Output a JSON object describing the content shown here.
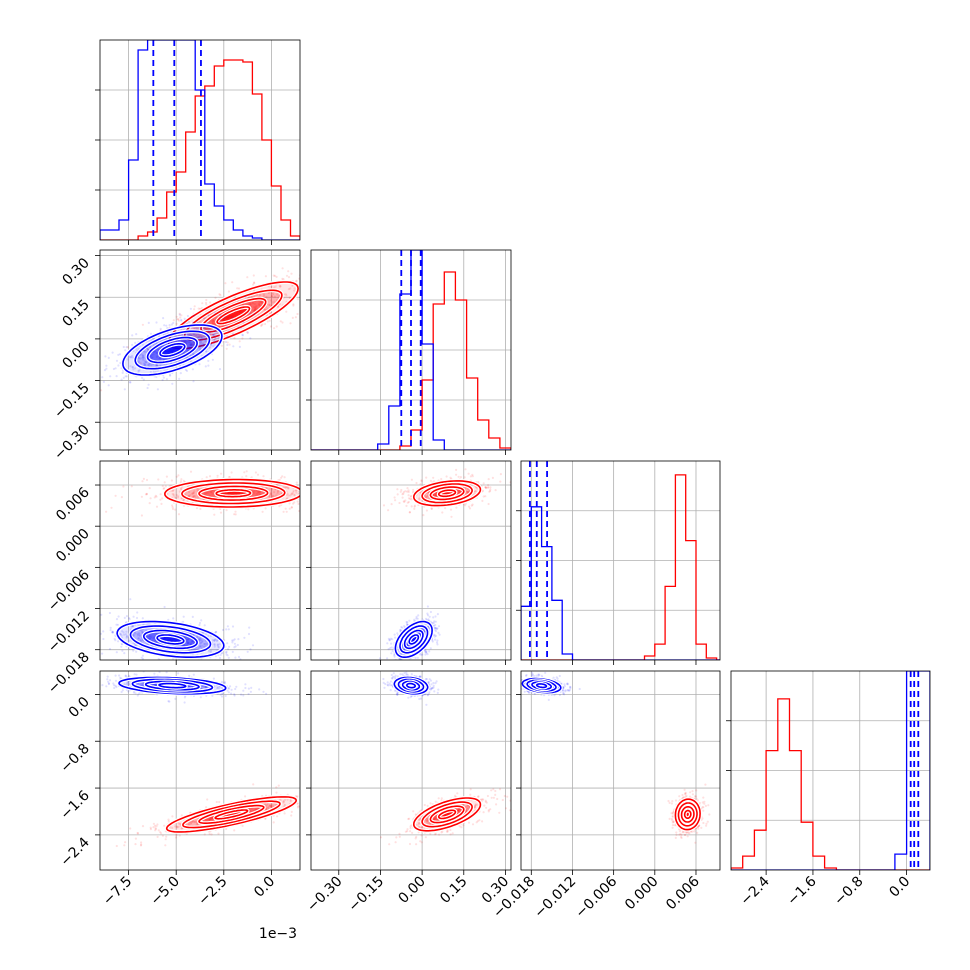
{
  "chart_data": {
    "type": "corner",
    "offset_text": "1e−3",
    "colors": {
      "sample_a": "#0000ff",
      "sample_b": "#ff0000"
    },
    "grid": true,
    "params": [
      {
        "range": [
          -9.0,
          1.5
        ],
        "ticks": [
          -7.5,
          -5.0,
          -2.5,
          0.0
        ],
        "tick_labels": [
          "−7.5",
          "−5.0",
          "−2.5",
          "0.0"
        ]
      },
      {
        "range": [
          -0.4,
          0.32
        ],
        "ticks": [
          -0.3,
          -0.15,
          0.0,
          0.15,
          0.3
        ],
        "tick_labels": [
          "−0.30",
          "−0.15",
          "0.00",
          "0.15",
          "0.30"
        ]
      },
      {
        "range": [
          -0.0195,
          0.0095
        ],
        "ticks": [
          -0.018,
          -0.012,
          -0.006,
          0.0,
          0.006
        ],
        "tick_labels": [
          "−0.018",
          "−0.012",
          "−0.006",
          "0.000",
          "0.006"
        ]
      },
      {
        "range": [
          -3.0,
          0.4
        ],
        "ticks": [
          -2.4,
          -1.6,
          -0.8,
          0.0
        ],
        "tick_labels": [
          "−2.4",
          "−1.6",
          "−0.8",
          "0.0"
        ]
      }
    ],
    "quantile_lines_sample_a": [
      [
        -6.2,
        -5.1,
        -3.7
      ],
      [
        -0.075,
        -0.04,
        -0.005
      ],
      [
        -0.0182,
        -0.0172,
        -0.0157
      ],
      [
        0.07,
        0.13,
        0.2
      ]
    ],
    "histograms": [
      {
        "param": 0,
        "bins": [
          -9.0,
          -8.5,
          -8.0,
          -7.5,
          -7.0,
          -6.5,
          -6.0,
          -5.5,
          -5.0,
          -4.5,
          -4.0,
          -3.5,
          -3.0,
          -2.5,
          -2.0,
          -1.5,
          -1.0,
          -0.5,
          0.0,
          0.5,
          1.0,
          1.5
        ],
        "sample_a": [
          0.05,
          0.05,
          0.1,
          0.4,
          0.95,
          1.0,
          1.0,
          1.0,
          1.0,
          1.0,
          0.75,
          0.28,
          0.17,
          0.1,
          0.05,
          0.02,
          0.01,
          0.0,
          0.0,
          0.0,
          0.0
        ],
        "sample_b": [
          0.0,
          0.0,
          0.0,
          0.0,
          0.02,
          0.04,
          0.11,
          0.24,
          0.34,
          0.54,
          0.72,
          0.77,
          0.87,
          0.9,
          0.9,
          0.89,
          0.73,
          0.5,
          0.27,
          0.1,
          0.02
        ]
      },
      {
        "param": 1,
        "bins": [
          -0.4,
          -0.36,
          -0.32,
          -0.28,
          -0.24,
          -0.2,
          -0.16,
          -0.12,
          -0.08,
          -0.04,
          0.0,
          0.04,
          0.08,
          0.12,
          0.16,
          0.2,
          0.24,
          0.28,
          0.32
        ],
        "sample_a": [
          0.0,
          0.0,
          0.0,
          0.0,
          0.0,
          0.0,
          0.03,
          0.22,
          0.78,
          1.0,
          0.53,
          0.05,
          0.0,
          0.0,
          0.0,
          0.0,
          0.0,
          0.0
        ],
        "sample_b": [
          0.0,
          0.0,
          0.0,
          0.0,
          0.0,
          0.0,
          0.0,
          0.0,
          0.02,
          0.1,
          0.35,
          0.73,
          0.89,
          0.75,
          0.36,
          0.15,
          0.06,
          0.01
        ]
      },
      {
        "param": 2,
        "bins": [
          -0.0195,
          -0.018,
          -0.0165,
          -0.015,
          -0.0135,
          -0.012,
          -0.0105,
          -0.009,
          -0.0075,
          -0.006,
          -0.0045,
          -0.003,
          -0.0015,
          0.0,
          0.0015,
          0.003,
          0.0045,
          0.006,
          0.0075,
          0.009,
          0.0095
        ],
        "sample_a": [
          0.27,
          0.77,
          0.57,
          0.3,
          0.03,
          0.0,
          0.0,
          0.0,
          0.0,
          0.0,
          0.0,
          0.0,
          0.0,
          0.0,
          0.0,
          0.0,
          0.0,
          0.0,
          0.0,
          0.0
        ],
        "sample_b": [
          0.0,
          0.0,
          0.0,
          0.0,
          0.0,
          0.0,
          0.0,
          0.0,
          0.0,
          0.0,
          0.0,
          0.0,
          0.02,
          0.08,
          0.37,
          0.93,
          0.6,
          0.08,
          0.01,
          0.0
        ]
      },
      {
        "param": 3,
        "bins": [
          -3.0,
          -2.8,
          -2.6,
          -2.4,
          -2.2,
          -2.0,
          -1.8,
          -1.6,
          -1.4,
          -1.2,
          -1.0,
          -0.8,
          -0.6,
          -0.4,
          -0.2,
          0.0,
          0.2,
          0.4
        ],
        "sample_a": [
          0.0,
          0.0,
          0.0,
          0.0,
          0.0,
          0.0,
          0.0,
          0.0,
          0.0,
          0.0,
          0.0,
          0.0,
          0.0,
          0.0,
          0.08,
          1.0,
          1.0
        ],
        "sample_b": [
          0.01,
          0.07,
          0.2,
          0.6,
          0.86,
          0.6,
          0.24,
          0.07,
          0.01,
          0.0,
          0.0,
          0.0,
          0.0,
          0.0,
          0.0,
          0.0,
          0.0
        ]
      }
    ],
    "posterior_2d": [
      {
        "x": 0,
        "y": 1,
        "sample_a": {
          "mean": [
            -5.2,
            -0.04
          ],
          "std": [
            1.3,
            0.045
          ],
          "corr": 0.55
        },
        "sample_b": {
          "mean": [
            -2.0,
            0.085
          ],
          "std": [
            1.7,
            0.06
          ],
          "corr": 0.8
        }
      },
      {
        "x": 0,
        "y": 2,
        "sample_a": {
          "mean": [
            -5.3,
            -0.0165
          ],
          "std": [
            1.4,
            0.0013
          ],
          "corr": -0.35
        },
        "sample_b": {
          "mean": [
            -2.0,
            0.0048
          ],
          "std": [
            1.8,
            0.001
          ],
          "corr": 0.05
        }
      },
      {
        "x": 1,
        "y": 2,
        "sample_a": {
          "mean": [
            -0.03,
            -0.0165
          ],
          "std": [
            0.033,
            0.0013
          ],
          "corr": 0.5
        },
        "sample_b": {
          "mean": [
            0.09,
            0.0048
          ],
          "std": [
            0.06,
            0.0009
          ],
          "corr": 0.3
        }
      },
      {
        "x": 0,
        "y": 3,
        "sample_a": {
          "mean": [
            -5.2,
            0.15
          ],
          "std": [
            1.4,
            0.07
          ],
          "corr": -0.3
        },
        "sample_b": {
          "mean": [
            -2.1,
            -2.05
          ],
          "std": [
            1.7,
            0.15
          ],
          "corr": 0.8
        }
      },
      {
        "x": 1,
        "y": 3,
        "sample_a": {
          "mean": [
            -0.04,
            0.15
          ],
          "std": [
            0.03,
            0.07
          ],
          "corr": -0.2
        },
        "sample_b": {
          "mean": [
            0.09,
            -2.05
          ],
          "std": [
            0.06,
            0.14
          ],
          "corr": 0.6
        }
      },
      {
        "x": 2,
        "y": 3,
        "sample_a": {
          "mean": [
            -0.0165,
            0.15
          ],
          "std": [
            0.0014,
            0.06
          ],
          "corr": -0.3
        },
        "sample_b": {
          "mean": [
            0.0048,
            -2.05
          ],
          "std": [
            0.0009,
            0.13
          ],
          "corr": 0.05
        }
      }
    ]
  }
}
